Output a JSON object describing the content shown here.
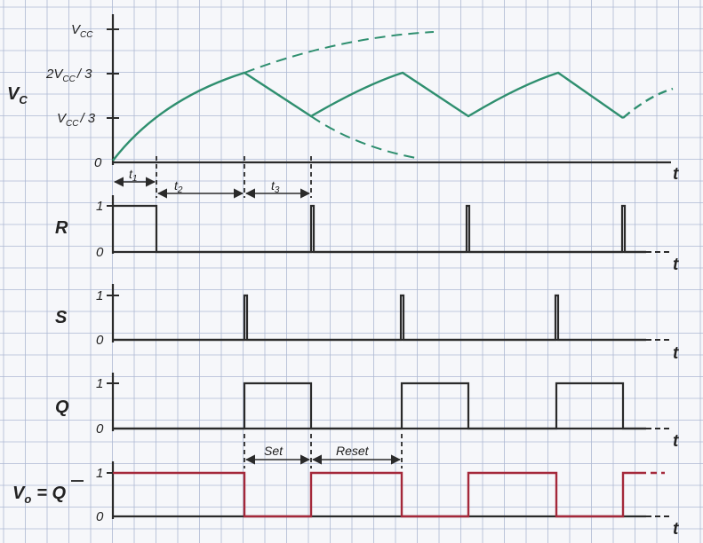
{
  "colors": {
    "paper": "#f6f7fa",
    "grid": "#aeb8d3",
    "axis": "#2a2a2a",
    "capacitor": "#2f8f6f",
    "output": "#a4283a"
  },
  "vc": {
    "label": "V",
    "label_sub": "C",
    "tick_vcc": "V",
    "tick_vcc_sub": "CC",
    "tick_2vcc": "2V",
    "tick_2vcc_sub": "CC",
    "tick_2vcc_tail": "/ 3",
    "tick_1vcc": "V",
    "tick_1vcc_sub": "CC",
    "tick_1vcc_tail": "/ 3",
    "zero": "0",
    "t": "t"
  },
  "intervals": {
    "t1": "t",
    "t1_sub": "1",
    "t2": "t",
    "t2_sub": "2",
    "t3": "t",
    "t3_sub": "3"
  },
  "r": {
    "label": "R",
    "one": "1",
    "zero": "0",
    "t": "t"
  },
  "s": {
    "label": "S",
    "one": "1",
    "zero": "0",
    "t": "t"
  },
  "q": {
    "label": "Q",
    "one": "1",
    "zero": "0",
    "t": "t"
  },
  "vo": {
    "label_v": "V",
    "label_sub": "o",
    "label_eq": "= ",
    "label_q": "Q",
    "one": "1",
    "zero": "0",
    "t": "t",
    "set": "Set",
    "reset": "Reset"
  }
}
